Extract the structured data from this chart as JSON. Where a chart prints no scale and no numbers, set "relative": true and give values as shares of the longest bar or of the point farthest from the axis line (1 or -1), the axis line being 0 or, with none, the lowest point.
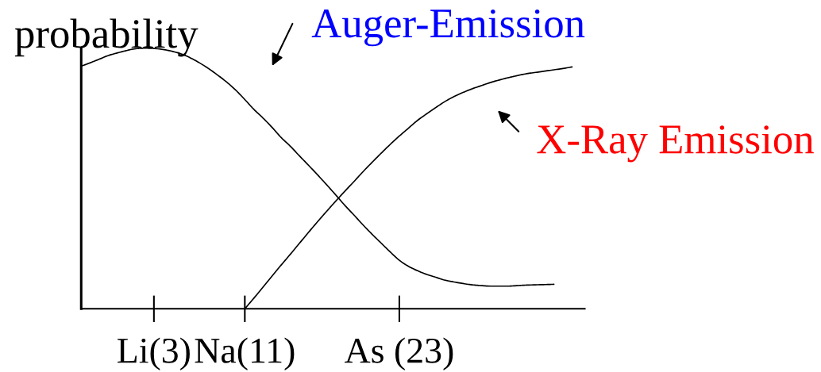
{
  "chart_data": {
    "type": "line",
    "ylabel": "probability",
    "relative": true,
    "tick_labels": "x",
    "legend": "top right",
    "categories": [
      null,
      null,
      null,
      null,
      null,
      null,
      null,
      null,
      "Li(3)",
      null,
      null,
      null,
      null,
      null,
      null,
      null,
      null,
      null,
      "Na(11)",
      null,
      null,
      null,
      null,
      null,
      null,
      null,
      null,
      null,
      null,
      null,
      null,
      null,
      null,
      null,
      null,
      "As (23)",
      null,
      null,
      null,
      null,
      null,
      null,
      null,
      null,
      null,
      null,
      null,
      null,
      null,
      null,
      null,
      null,
      null,
      null,
      null,
      null
    ],
    "series": [
      {
        "name": "Auger-Emission",
        "color": "#000000",
        "values": [
          0.931,
          0.944,
          0.958,
          0.972,
          0.982,
          0.991,
          0.998,
          1.0,
          0.999,
          0.995,
          0.988,
          0.978,
          0.963,
          0.944,
          0.922,
          0.897,
          0.87,
          0.839,
          0.803,
          0.765,
          0.732,
          0.696,
          0.657,
          0.624,
          0.587,
          0.551,
          0.514,
          0.476,
          0.437,
          0.397,
          0.36,
          0.322,
          0.286,
          0.252,
          0.218,
          0.186,
          0.163,
          0.146,
          0.132,
          0.121,
          0.11,
          0.103,
          0.097,
          0.092,
          0.089,
          0.087,
          0.087,
          0.087,
          0.089,
          0.091,
          0.092,
          0.093,
          0.094,
          null,
          null,
          null
        ]
      },
      {
        "name": "X-Ray Emission",
        "color": "#000000",
        "values": [
          null,
          null,
          null,
          null,
          null,
          null,
          null,
          null,
          null,
          null,
          null,
          null,
          null,
          null,
          null,
          null,
          null,
          null,
          0,
          0.041,
          0.083,
          0.126,
          0.168,
          0.209,
          0.251,
          0.293,
          0.334,
          0.374,
          0.413,
          0.451,
          0.488,
          0.526,
          0.562,
          0.597,
          0.631,
          0.663,
          0.693,
          0.723,
          0.748,
          0.772,
          0.795,
          0.814,
          0.83,
          0.844,
          0.856,
          0.868,
          0.878,
          0.887,
          0.895,
          0.902,
          0.907,
          0.912,
          0.917,
          0.922,
          0.928,
          null
        ]
      }
    ]
  }
}
